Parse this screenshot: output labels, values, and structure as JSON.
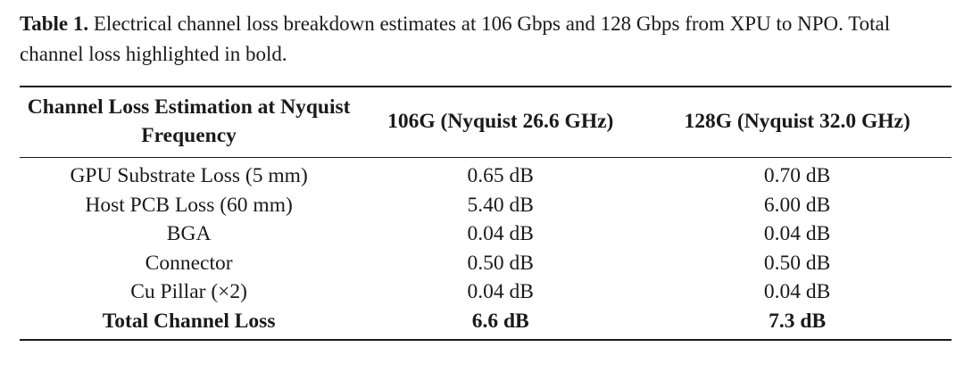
{
  "caption": {
    "label": "Table 1.",
    "text": " Electrical channel loss breakdown estimates at 106 Gbps and 128 Gbps from XPU to NPO. Total channel loss highlighted in bold."
  },
  "table": {
    "headers": [
      "Channel Loss Estimation at Nyquist Frequency",
      "106G (Nyquist 26.6 GHz)",
      "128G (Nyquist 32.0 GHz)"
    ],
    "rows": [
      [
        "GPU Substrate Loss (5 mm)",
        "0.65 dB",
        "0.70 dB"
      ],
      [
        "Host PCB Loss (60 mm)",
        "5.40 dB",
        "6.00 dB"
      ],
      [
        "BGA",
        "0.04 dB",
        "0.04 dB"
      ],
      [
        "Connector",
        "0.50 dB",
        "0.50 dB"
      ],
      [
        "Cu Pillar (×2)",
        "0.04 dB",
        "0.04 dB"
      ],
      [
        "Total Channel Loss",
        "6.6 dB",
        "7.3 dB"
      ]
    ]
  }
}
